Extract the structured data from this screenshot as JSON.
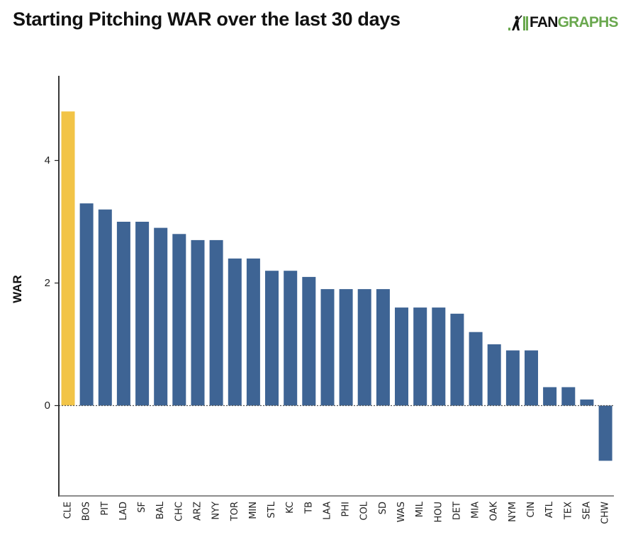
{
  "header": {
    "title": "Starting Pitching WAR over the last 30 days",
    "logo": {
      "icon": "fangraphs-batter-icon",
      "text_dark": "FAN",
      "text_green": "GRAPHS"
    }
  },
  "colors": {
    "highlight": "#f2c447",
    "bar": "#3e6494",
    "axis": "#222222",
    "zero_line": "#555555",
    "logo_green": "#6aa84f"
  },
  "chart_data": {
    "type": "bar",
    "title": "Starting Pitching WAR over the last 30 days",
    "xlabel": "",
    "ylabel": "WAR",
    "ylim": [
      -1.5,
      5.4
    ],
    "yticks": [
      0,
      2,
      4
    ],
    "grid": false,
    "zero_line": "dotted",
    "highlighted_category": "CLE",
    "categories": [
      "CLE",
      "BOS",
      "PIT",
      "LAD",
      "SF",
      "BAL",
      "CHC",
      "ARZ",
      "NYY",
      "TOR",
      "MIN",
      "STL",
      "KC",
      "TB",
      "LAA",
      "PHI",
      "COL",
      "SD",
      "WAS",
      "MIL",
      "HOU",
      "DET",
      "MIA",
      "OAK",
      "NYM",
      "CIN",
      "ATL",
      "TEX",
      "SEA",
      "CHW"
    ],
    "values": [
      4.8,
      3.3,
      3.2,
      3.0,
      3.0,
      2.9,
      2.8,
      2.7,
      2.7,
      2.4,
      2.4,
      2.2,
      2.2,
      2.1,
      1.9,
      1.9,
      1.9,
      1.9,
      1.6,
      1.6,
      1.6,
      1.5,
      1.2,
      1.0,
      0.9,
      0.9,
      0.3,
      0.3,
      0.1,
      -0.9
    ]
  }
}
